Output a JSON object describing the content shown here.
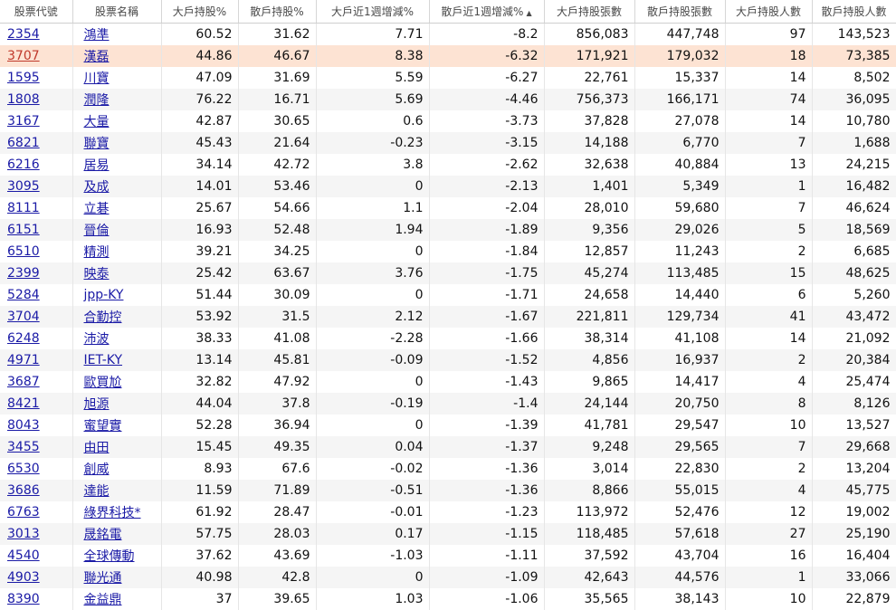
{
  "headers": {
    "code": "股票代號",
    "name": "股票名稱",
    "big_pct": "大戶持股%",
    "small_pct": "散戶持股%",
    "big_wk_chg": "大戶近1週增減%",
    "small_wk_chg": "散戶近1週增減%",
    "big_lots": "大戶持股張數",
    "small_lots": "散戶持股張數",
    "big_holders": "大戶持股人數",
    "small_holders": "散戶持股人數"
  },
  "sort_indicator": "▲",
  "highlight_color": "#fde3d3",
  "link_color": "#1a1aa6",
  "rows": [
    {
      "code": "2354",
      "name": "鴻準",
      "big_pct": "60.52",
      "small_pct": "31.62",
      "big_wk_chg": "7.71",
      "small_wk_chg": "-8.2",
      "big_lots": "856,083",
      "small_lots": "447,748",
      "big_holders": "97",
      "small_holders": "143,523"
    },
    {
      "code": "3707",
      "name": "漢磊",
      "big_pct": "44.86",
      "small_pct": "46.67",
      "big_wk_chg": "8.38",
      "small_wk_chg": "-6.32",
      "big_lots": "171,921",
      "small_lots": "179,032",
      "big_holders": "18",
      "small_holders": "73,385",
      "highlight": true
    },
    {
      "code": "1595",
      "name": "川寶",
      "big_pct": "47.09",
      "small_pct": "31.69",
      "big_wk_chg": "5.59",
      "small_wk_chg": "-6.27",
      "big_lots": "22,761",
      "small_lots": "15,337",
      "big_holders": "14",
      "small_holders": "8,502"
    },
    {
      "code": "1808",
      "name": "潤隆",
      "big_pct": "76.22",
      "small_pct": "16.71",
      "big_wk_chg": "5.69",
      "small_wk_chg": "-4.46",
      "big_lots": "756,373",
      "small_lots": "166,171",
      "big_holders": "74",
      "small_holders": "36,095"
    },
    {
      "code": "3167",
      "name": "大量",
      "big_pct": "42.87",
      "small_pct": "30.65",
      "big_wk_chg": "0.6",
      "small_wk_chg": "-3.73",
      "big_lots": "37,828",
      "small_lots": "27,078",
      "big_holders": "14",
      "small_holders": "10,780"
    },
    {
      "code": "6821",
      "name": "聯寶",
      "big_pct": "45.43",
      "small_pct": "21.64",
      "big_wk_chg": "-0.23",
      "small_wk_chg": "-3.15",
      "big_lots": "14,188",
      "small_lots": "6,770",
      "big_holders": "7",
      "small_holders": "1,688"
    },
    {
      "code": "6216",
      "name": "居易",
      "big_pct": "34.14",
      "small_pct": "42.72",
      "big_wk_chg": "3.8",
      "small_wk_chg": "-2.62",
      "big_lots": "32,638",
      "small_lots": "40,884",
      "big_holders": "13",
      "small_holders": "24,215"
    },
    {
      "code": "3095",
      "name": "及成",
      "big_pct": "14.01",
      "small_pct": "53.46",
      "big_wk_chg": "0",
      "small_wk_chg": "-2.13",
      "big_lots": "1,401",
      "small_lots": "5,349",
      "big_holders": "1",
      "small_holders": "16,482"
    },
    {
      "code": "8111",
      "name": "立碁",
      "big_pct": "25.67",
      "small_pct": "54.66",
      "big_wk_chg": "1.1",
      "small_wk_chg": "-2.04",
      "big_lots": "28,010",
      "small_lots": "59,680",
      "big_holders": "7",
      "small_holders": "46,624"
    },
    {
      "code": "6151",
      "name": "晉倫",
      "big_pct": "16.93",
      "small_pct": "52.48",
      "big_wk_chg": "1.94",
      "small_wk_chg": "-1.89",
      "big_lots": "9,356",
      "small_lots": "29,026",
      "big_holders": "5",
      "small_holders": "18,569"
    },
    {
      "code": "6510",
      "name": "精測",
      "big_pct": "39.21",
      "small_pct": "34.25",
      "big_wk_chg": "0",
      "small_wk_chg": "-1.84",
      "big_lots": "12,857",
      "small_lots": "11,243",
      "big_holders": "2",
      "small_holders": "6,685"
    },
    {
      "code": "2399",
      "name": "映泰",
      "big_pct": "25.42",
      "small_pct": "63.67",
      "big_wk_chg": "3.76",
      "small_wk_chg": "-1.75",
      "big_lots": "45,274",
      "small_lots": "113,485",
      "big_holders": "15",
      "small_holders": "48,625"
    },
    {
      "code": "5284",
      "name": "jpp-KY",
      "big_pct": "51.44",
      "small_pct": "30.09",
      "big_wk_chg": "0",
      "small_wk_chg": "-1.71",
      "big_lots": "24,658",
      "small_lots": "14,440",
      "big_holders": "6",
      "small_holders": "5,260"
    },
    {
      "code": "3704",
      "name": "合勤控",
      "big_pct": "53.92",
      "small_pct": "31.5",
      "big_wk_chg": "2.12",
      "small_wk_chg": "-1.67",
      "big_lots": "221,811",
      "small_lots": "129,734",
      "big_holders": "41",
      "small_holders": "43,472"
    },
    {
      "code": "6248",
      "name": "沛波",
      "big_pct": "38.33",
      "small_pct": "41.08",
      "big_wk_chg": "-2.28",
      "small_wk_chg": "-1.66",
      "big_lots": "38,314",
      "small_lots": "41,108",
      "big_holders": "14",
      "small_holders": "21,092"
    },
    {
      "code": "4971",
      "name": "IET-KY",
      "big_pct": "13.14",
      "small_pct": "45.81",
      "big_wk_chg": "-0.09",
      "small_wk_chg": "-1.52",
      "big_lots": "4,856",
      "small_lots": "16,937",
      "big_holders": "2",
      "small_holders": "20,384"
    },
    {
      "code": "3687",
      "name": "歐買尬",
      "big_pct": "32.82",
      "small_pct": "47.92",
      "big_wk_chg": "0",
      "small_wk_chg": "-1.43",
      "big_lots": "9,865",
      "small_lots": "14,417",
      "big_holders": "4",
      "small_holders": "25,474"
    },
    {
      "code": "8421",
      "name": "旭源",
      "big_pct": "44.04",
      "small_pct": "37.8",
      "big_wk_chg": "-0.19",
      "small_wk_chg": "-1.4",
      "big_lots": "24,144",
      "small_lots": "20,750",
      "big_holders": "8",
      "small_holders": "8,126"
    },
    {
      "code": "8043",
      "name": "蜜望實",
      "big_pct": "52.28",
      "small_pct": "36.94",
      "big_wk_chg": "0",
      "small_wk_chg": "-1.39",
      "big_lots": "41,781",
      "small_lots": "29,547",
      "big_holders": "10",
      "small_holders": "13,527"
    },
    {
      "code": "3455",
      "name": "由田",
      "big_pct": "15.45",
      "small_pct": "49.35",
      "big_wk_chg": "0.04",
      "small_wk_chg": "-1.37",
      "big_lots": "9,248",
      "small_lots": "29,565",
      "big_holders": "7",
      "small_holders": "29,668"
    },
    {
      "code": "6530",
      "name": "創威",
      "big_pct": "8.93",
      "small_pct": "67.6",
      "big_wk_chg": "-0.02",
      "small_wk_chg": "-1.36",
      "big_lots": "3,014",
      "small_lots": "22,830",
      "big_holders": "2",
      "small_holders": "13,204"
    },
    {
      "code": "3686",
      "name": "達能",
      "big_pct": "11.59",
      "small_pct": "71.89",
      "big_wk_chg": "-0.51",
      "small_wk_chg": "-1.36",
      "big_lots": "8,866",
      "small_lots": "55,015",
      "big_holders": "4",
      "small_holders": "45,775"
    },
    {
      "code": "6763",
      "name": "綠界科技*",
      "big_pct": "61.92",
      "small_pct": "28.47",
      "big_wk_chg": "-0.01",
      "small_wk_chg": "-1.23",
      "big_lots": "113,972",
      "small_lots": "52,476",
      "big_holders": "12",
      "small_holders": "19,002"
    },
    {
      "code": "3013",
      "name": "晟銘電",
      "big_pct": "57.75",
      "small_pct": "28.03",
      "big_wk_chg": "0.17",
      "small_wk_chg": "-1.15",
      "big_lots": "118,485",
      "small_lots": "57,618",
      "big_holders": "27",
      "small_holders": "25,190"
    },
    {
      "code": "4540",
      "name": "全球傳動",
      "big_pct": "37.62",
      "small_pct": "43.69",
      "big_wk_chg": "-1.03",
      "small_wk_chg": "-1.11",
      "big_lots": "37,592",
      "small_lots": "43,704",
      "big_holders": "16",
      "small_holders": "16,404"
    },
    {
      "code": "4903",
      "name": "聯光通",
      "big_pct": "40.98",
      "small_pct": "42.8",
      "big_wk_chg": "0",
      "small_wk_chg": "-1.09",
      "big_lots": "42,643",
      "small_lots": "44,576",
      "big_holders": "1",
      "small_holders": "33,066"
    },
    {
      "code": "8390",
      "name": "金益鼎",
      "big_pct": "37",
      "small_pct": "39.65",
      "big_wk_chg": "1.03",
      "small_wk_chg": "-1.06",
      "big_lots": "35,565",
      "small_lots": "38,143",
      "big_holders": "10",
      "small_holders": "22,879"
    }
  ]
}
